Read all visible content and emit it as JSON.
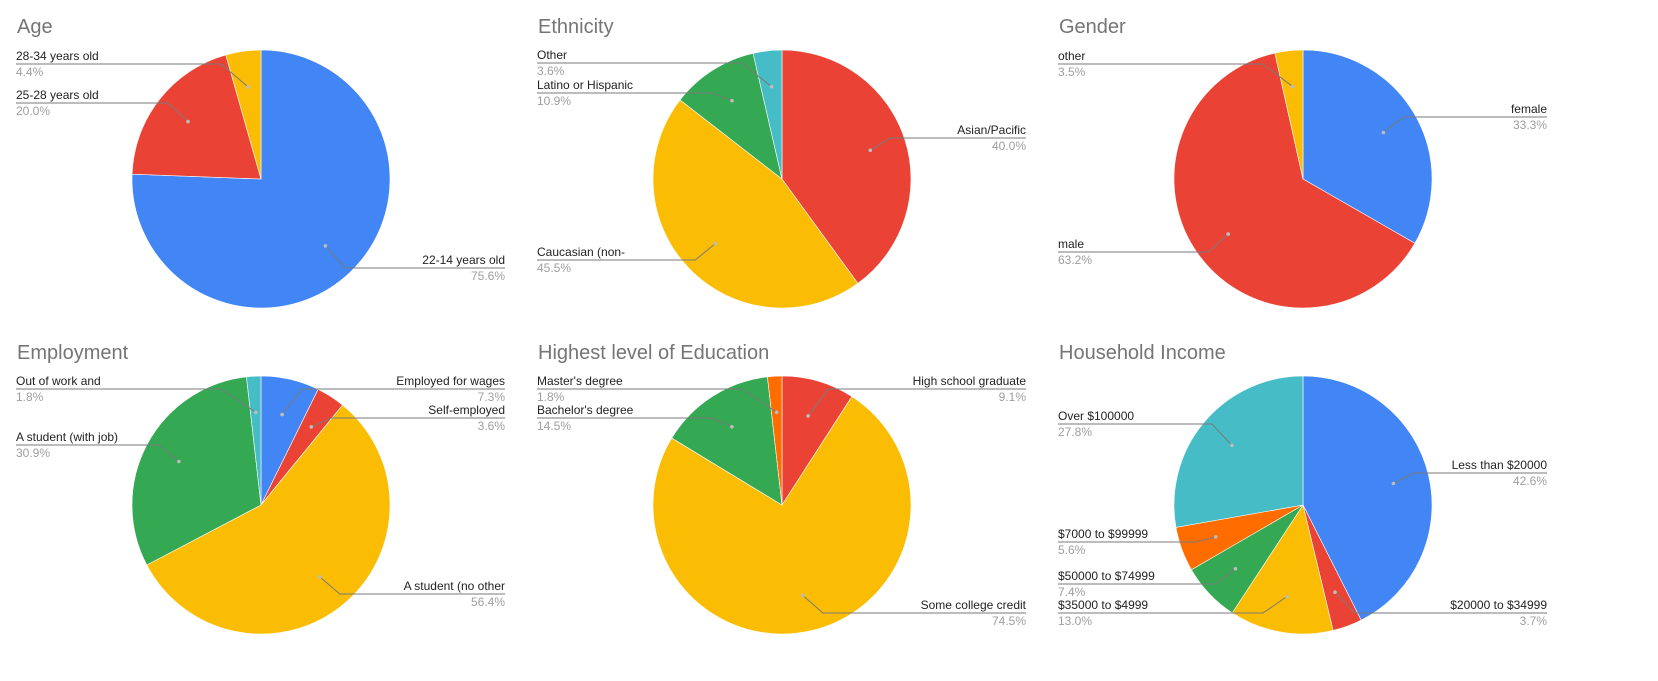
{
  "chart_data": [
    {
      "type": "pie",
      "title": "Age",
      "slices": [
        {
          "label": "22-14 years old",
          "percent": "75.6%",
          "value": 75.6,
          "color": "#4285F4"
        },
        {
          "label": "25-28 years old",
          "percent": "20.0%",
          "value": 20.0,
          "color": "#EA4335"
        },
        {
          "label": "28-34 years old",
          "percent": "4.4%",
          "value": 4.4,
          "color": "#FBBC04"
        }
      ]
    },
    {
      "type": "pie",
      "title": "Ethnicity",
      "slices": [
        {
          "label": "Asian/Pacific",
          "percent": "40.0%",
          "value": 40.0,
          "color": "#EA4335"
        },
        {
          "label": "Caucasian (non-",
          "percent": "45.5%",
          "value": 45.5,
          "color": "#FBBC04"
        },
        {
          "label": "Latino or Hispanic",
          "percent": "10.9%",
          "value": 10.9,
          "color": "#34A853"
        },
        {
          "label": "Other",
          "percent": "3.6%",
          "value": 3.6,
          "color": "#46BDC6"
        }
      ]
    },
    {
      "type": "pie",
      "title": "Gender",
      "slices": [
        {
          "label": "female",
          "percent": "33.3%",
          "value": 33.3,
          "color": "#4285F4"
        },
        {
          "label": "male",
          "percent": "63.2%",
          "value": 63.2,
          "color": "#EA4335"
        },
        {
          "label": "other",
          "percent": "3.5%",
          "value": 3.5,
          "color": "#FBBC04"
        }
      ]
    },
    {
      "type": "pie",
      "title": "Employment",
      "slices": [
        {
          "label": "Employed for wages",
          "percent": "7.3%",
          "value": 7.3,
          "color": "#4285F4"
        },
        {
          "label": "Self-employed",
          "percent": "3.6%",
          "value": 3.6,
          "color": "#EA4335"
        },
        {
          "label": "A student (no other",
          "percent": "56.4%",
          "value": 56.4,
          "color": "#FBBC04"
        },
        {
          "label": "A student (with job)",
          "percent": "30.9%",
          "value": 30.9,
          "color": "#34A853"
        },
        {
          "label": "Out of work and",
          "percent": "1.8%",
          "value": 1.8,
          "color": "#46BDC6"
        }
      ]
    },
    {
      "type": "pie",
      "title": "Highest level of Education",
      "slices": [
        {
          "label": "High school graduate",
          "percent": "9.1%",
          "value": 9.1,
          "color": "#EA4335"
        },
        {
          "label": "Some college credit",
          "percent": "74.5%",
          "value": 74.5,
          "color": "#FBBC04"
        },
        {
          "label": "Bachelor's degree",
          "percent": "14.5%",
          "value": 14.5,
          "color": "#34A853"
        },
        {
          "label": "Master's degree",
          "percent": "1.8%",
          "value": 1.8,
          "color": "#FF6D01"
        }
      ]
    },
    {
      "type": "pie",
      "title": "Household Income",
      "slices": [
        {
          "label": "Less than $20000",
          "percent": "42.6%",
          "value": 42.6,
          "color": "#4285F4"
        },
        {
          "label": "$20000 to $34999",
          "percent": "3.7%",
          "value": 3.7,
          "color": "#EA4335"
        },
        {
          "label": "$35000 to $4999",
          "percent": "13.0%",
          "value": 13.0,
          "color": "#FBBC04"
        },
        {
          "label": "$50000 to $74999",
          "percent": "7.4%",
          "value": 7.4,
          "color": "#34A853"
        },
        {
          "label": "$7000 to $99999",
          "percent": "5.6%",
          "value": 5.6,
          "color": "#FF6D01"
        },
        {
          "label": "Over $100000",
          "percent": "27.8%",
          "value": 27.8,
          "color": "#46BDC6"
        }
      ]
    }
  ]
}
